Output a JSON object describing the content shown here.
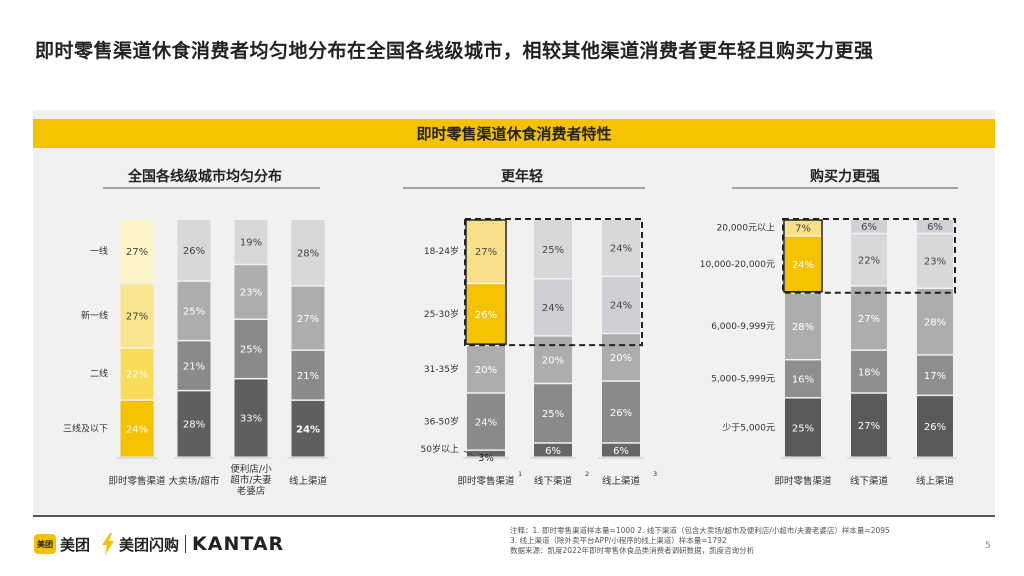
{
  "title": "即时零售渠道休食消费者均匀地分布在全国各线级城市，相较其他渠道消费者更年轻且购买力更强",
  "banner": "即时零售渠道休食消费者特性",
  "notes": [
    "注释：1. 即时零售渠道样本量=1000 2. 线下渠道（包含大卖场/超市及便利店/小超市/夫妻老婆店）样本量=2095",
    "3. 线上渠道（除外卖平台APP/小程序的线上渠道）样本量=1792",
    "数据来源：凯度2022年即时零售休食品类消费者调研数据，凯度咨询分析"
  ],
  "page_number": "5",
  "logos": {
    "meituan_badge": "美团",
    "meituan": "美团",
    "shangou": "美团闪购",
    "kantar": "KANTAR"
  },
  "colors": {
    "accent": "#f5c200",
    "panel": "#f1f1f1"
  },
  "chart_data": [
    {
      "type": "bar",
      "stacked": true,
      "title": "全国各线级城市均匀分布",
      "categories": [
        "即时零售渠道",
        "大卖场/超市",
        "便利店/小超市/夫妻老婆店",
        "线上渠道"
      ],
      "series": [
        {
          "name": "三线及以下",
          "values": [
            24,
            28,
            33,
            24
          ]
        },
        {
          "name": "二线",
          "values": [
            22,
            21,
            25,
            21
          ]
        },
        {
          "name": "新一线",
          "values": [
            27,
            25,
            23,
            27
          ]
        },
        {
          "name": "一线",
          "values": [
            27,
            26,
            19,
            28
          ]
        }
      ],
      "ylim": [
        0,
        100
      ]
    },
    {
      "type": "bar",
      "stacked": true,
      "title": "更年轻",
      "categories": [
        "即时零售渠道",
        "线下渠道",
        "线上渠道"
      ],
      "category_sup": [
        "1",
        "2",
        "3"
      ],
      "series": [
        {
          "name": "50岁以上",
          "values": [
            3,
            6,
            6
          ]
        },
        {
          "name": "36-50岁",
          "values": [
            24,
            25,
            26
          ]
        },
        {
          "name": "31-35岁",
          "values": [
            20,
            20,
            20
          ]
        },
        {
          "name": "25-30岁",
          "values": [
            26,
            24,
            24
          ]
        },
        {
          "name": "18-24岁",
          "values": [
            27,
            25,
            24
          ]
        }
      ],
      "ylim": [
        0,
        100
      ]
    },
    {
      "type": "bar",
      "stacked": true,
      "title": "购买力更强",
      "categories": [
        "即时零售渠道",
        "线下渠道",
        "线上渠道"
      ],
      "series": [
        {
          "name": "少于5,000元",
          "values": [
            25,
            27,
            26
          ]
        },
        {
          "name": "5,000-5,999元",
          "values": [
            16,
            18,
            17
          ]
        },
        {
          "name": "6,000-9,999元",
          "values": [
            28,
            27,
            28
          ]
        },
        {
          "name": "10,000-20,000元",
          "values": [
            24,
            22,
            23
          ]
        },
        {
          "name": "20,000元以上",
          "values": [
            7,
            6,
            6
          ]
        }
      ],
      "ylim": [
        0,
        100
      ]
    }
  ]
}
